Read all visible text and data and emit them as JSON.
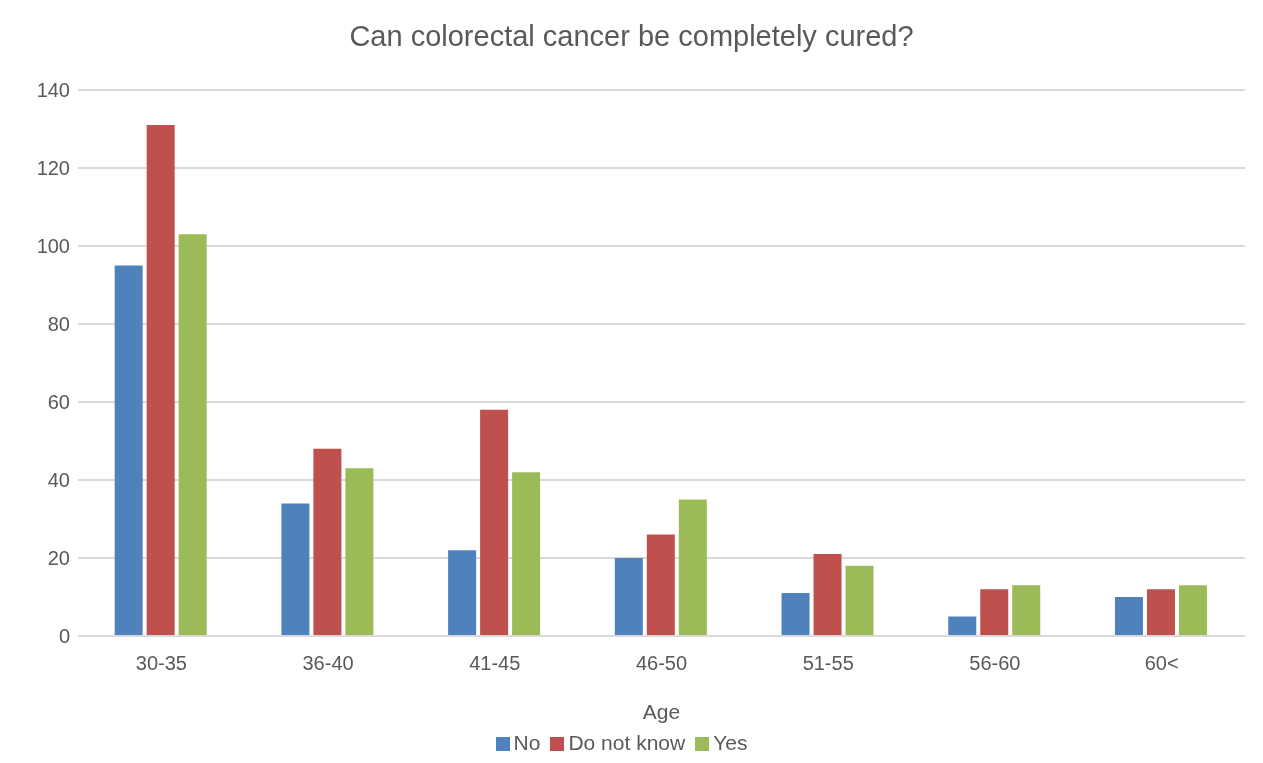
{
  "chart_data": {
    "type": "bar",
    "title": "Can colorectal cancer be completely cured?",
    "xlabel": "Age",
    "categories": [
      "30-35",
      "36-40",
      "41-45",
      "46-50",
      "51-55",
      "56-60",
      "60<"
    ],
    "series": [
      {
        "name": "No",
        "color": "#4f81bd",
        "values": [
          95,
          34,
          22,
          20,
          11,
          5,
          10
        ]
      },
      {
        "name": "Do not know",
        "color": "#c0504d",
        "values": [
          131,
          48,
          58,
          26,
          21,
          12,
          12
        ]
      },
      {
        "name": "Yes",
        "color": "#9bbb59",
        "values": [
          103,
          43,
          42,
          35,
          18,
          13,
          13
        ]
      }
    ],
    "ylim": [
      0,
      140
    ],
    "yticks": [
      0,
      20,
      40,
      60,
      80,
      100,
      120,
      140
    ],
    "grid": "y",
    "legend": "bottom"
  }
}
